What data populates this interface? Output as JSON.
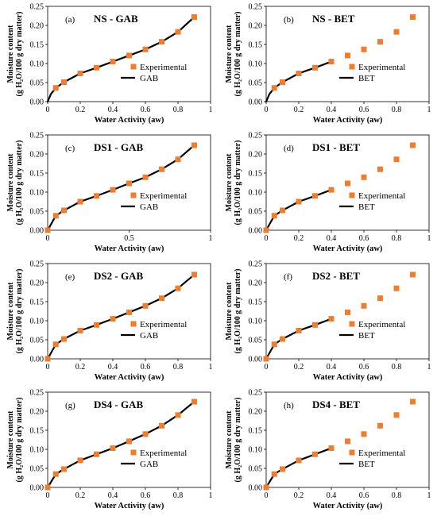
{
  "colors": {
    "marker": "#ed7d31",
    "model": "#000000",
    "axis": "#000000"
  },
  "chart_data": [
    {
      "type": "scatter",
      "panel_label": "(a)",
      "title": "NS - GAB",
      "xlabel": "Water Activity (aw)",
      "ylabel_line1": "Moisture content",
      "ylabel_line2": "(g H₂O/100 g dry matter)",
      "xlim": [
        0,
        1
      ],
      "ylim": [
        0,
        0.25
      ],
      "xticks": [
        "0",
        "0.2",
        "0.4",
        "0.6",
        "0.8",
        "1"
      ],
      "yticks": [
        "0.00",
        "0.05",
        "0.10",
        "0.15",
        "0.20",
        "0.25"
      ],
      "legend": [
        "Experimental",
        "GAB"
      ],
      "legend_position": "right",
      "experimental": {
        "x": [
          0.05,
          0.1,
          0.2,
          0.3,
          0.4,
          0.5,
          0.6,
          0.7,
          0.8,
          0.9
        ],
        "y": [
          0.036,
          0.051,
          0.074,
          0.089,
          0.105,
          0.121,
          0.137,
          0.157,
          0.183,
          0.222
        ]
      },
      "model": {
        "x": [
          0,
          0.02,
          0.05,
          0.1,
          0.2,
          0.3,
          0.4,
          0.5,
          0.6,
          0.7,
          0.8,
          0.9
        ],
        "y": [
          0,
          0.02,
          0.036,
          0.051,
          0.074,
          0.089,
          0.105,
          0.121,
          0.137,
          0.157,
          0.183,
          0.222
        ]
      }
    },
    {
      "type": "scatter",
      "panel_label": "(b)",
      "title": "NS - BET",
      "xlabel": "Water Activity (aw)",
      "ylabel_line1": "Moisture content",
      "ylabel_line2": "(g H₂O/100 g dry matter)",
      "xlim": [
        0,
        1
      ],
      "ylim": [
        0,
        0.25
      ],
      "xticks": [
        "0",
        "0.2",
        "0.4",
        "0.6",
        "0.8",
        "1"
      ],
      "yticks": [
        "0.00",
        "0.05",
        "0.10",
        "0.15",
        "0.20",
        "0.25"
      ],
      "legend": [
        "Experimental",
        "BET"
      ],
      "legend_position": "right",
      "experimental": {
        "x": [
          0.05,
          0.1,
          0.2,
          0.3,
          0.4,
          0.5,
          0.6,
          0.7,
          0.8,
          0.9
        ],
        "y": [
          0.036,
          0.051,
          0.074,
          0.089,
          0.105,
          0.121,
          0.137,
          0.157,
          0.183,
          0.222
        ]
      },
      "model": {
        "x": [
          0,
          0.02,
          0.05,
          0.1,
          0.2,
          0.3,
          0.4
        ],
        "y": [
          0,
          0.02,
          0.036,
          0.051,
          0.074,
          0.089,
          0.105
        ]
      }
    },
    {
      "type": "scatter",
      "panel_label": "(c)",
      "title": "DS1 - GAB",
      "xlabel": "Water Activity (aw)",
      "ylabel_line1": "Moisture content",
      "ylabel_line2": "(g H₂O/100 g dry matter)",
      "xlim": [
        0,
        1
      ],
      "ylim": [
        0,
        0.25
      ],
      "xticks": [
        "0",
        "0.5",
        "1"
      ],
      "xtick_values": [
        0,
        0.5,
        1
      ],
      "yticks": [
        "0.00",
        "0.05",
        "0.10",
        "0.15",
        "0.20",
        "0.25"
      ],
      "legend": [
        "Experimental",
        "GAB"
      ],
      "legend_position": "right",
      "experimental": {
        "x": [
          0.0,
          0.05,
          0.1,
          0.2,
          0.3,
          0.4,
          0.5,
          0.6,
          0.7,
          0.8,
          0.9
        ],
        "y": [
          0.0,
          0.038,
          0.052,
          0.075,
          0.09,
          0.106,
          0.123,
          0.139,
          0.16,
          0.186,
          0.223
        ]
      },
      "model": {
        "x": [
          0.0,
          0.05,
          0.1,
          0.2,
          0.3,
          0.4,
          0.5,
          0.6,
          0.7,
          0.8,
          0.9
        ],
        "y": [
          0.0,
          0.038,
          0.052,
          0.075,
          0.09,
          0.106,
          0.123,
          0.139,
          0.16,
          0.186,
          0.223
        ]
      }
    },
    {
      "type": "scatter",
      "panel_label": "(d)",
      "title": "DS1 - BET",
      "xlabel": "Water Activity (aw)",
      "ylabel_line1": "Moisture content",
      "ylabel_line2": "(g H₂O/100 g dry matter)",
      "xlim": [
        0,
        1
      ],
      "ylim": [
        0,
        0.25
      ],
      "xticks": [
        "0",
        "0.2",
        "0.4",
        "0.6",
        "0.8",
        "1"
      ],
      "yticks": [
        "0.00",
        "0.05",
        "0.10",
        "0.15",
        "0.20",
        "0.25"
      ],
      "legend": [
        "Experimental",
        "BET"
      ],
      "legend_position": "right",
      "experimental": {
        "x": [
          0.0,
          0.05,
          0.1,
          0.2,
          0.3,
          0.4,
          0.5,
          0.6,
          0.7,
          0.8,
          0.9
        ],
        "y": [
          0.0,
          0.038,
          0.052,
          0.075,
          0.09,
          0.106,
          0.123,
          0.139,
          0.16,
          0.186,
          0.223
        ]
      },
      "model": {
        "x": [
          0.0,
          0.05,
          0.1,
          0.2,
          0.3,
          0.4
        ],
        "y": [
          0.0,
          0.038,
          0.052,
          0.075,
          0.09,
          0.106
        ]
      }
    },
    {
      "type": "scatter",
      "panel_label": "(e)",
      "title": "DS2 - GAB",
      "xlabel": "Water Activity (aw)",
      "ylabel_line1": "Moisture content",
      "ylabel_line2": "(g H₂O/100 g dry matter)",
      "xlim": [
        0,
        1
      ],
      "ylim": [
        0,
        0.25
      ],
      "xticks": [
        "0",
        "0.2",
        "0.4",
        "0.6",
        "0.8",
        "1"
      ],
      "yticks": [
        "0.00",
        "0.05",
        "0.10",
        "0.15",
        "0.20",
        "0.25"
      ],
      "legend": [
        "Experimental",
        "GAB"
      ],
      "legend_position": "right",
      "experimental": {
        "x": [
          0.0,
          0.05,
          0.1,
          0.2,
          0.3,
          0.4,
          0.5,
          0.6,
          0.7,
          0.8,
          0.9
        ],
        "y": [
          0.0,
          0.038,
          0.052,
          0.074,
          0.089,
          0.105,
          0.122,
          0.139,
          0.159,
          0.185,
          0.221
        ]
      },
      "model": {
        "x": [
          0.0,
          0.05,
          0.1,
          0.2,
          0.3,
          0.4,
          0.5,
          0.6,
          0.7,
          0.8,
          0.9
        ],
        "y": [
          0.0,
          0.038,
          0.052,
          0.074,
          0.089,
          0.105,
          0.122,
          0.139,
          0.159,
          0.185,
          0.221
        ]
      }
    },
    {
      "type": "scatter",
      "panel_label": "(f)",
      "title": "DS2 - BET",
      "xlabel": "Water Activity (aw)",
      "ylabel_line1": "Moisture content",
      "ylabel_line2": "(g H₂O/100 g dry matter)",
      "xlim": [
        0,
        1
      ],
      "ylim": [
        0,
        0.25
      ],
      "xticks": [
        "0",
        "0.2",
        "0.4",
        "0.6",
        "0.8",
        "1"
      ],
      "yticks": [
        "0.00",
        "0.05",
        "0.10",
        "0.15",
        "0.20",
        "0.25"
      ],
      "legend": [
        "Experimental",
        "BET"
      ],
      "legend_position": "right",
      "experimental": {
        "x": [
          0.0,
          0.05,
          0.1,
          0.2,
          0.3,
          0.4,
          0.5,
          0.6,
          0.7,
          0.8,
          0.9
        ],
        "y": [
          0.0,
          0.038,
          0.052,
          0.074,
          0.089,
          0.105,
          0.122,
          0.139,
          0.159,
          0.185,
          0.221
        ]
      },
      "model": {
        "x": [
          0.0,
          0.05,
          0.1,
          0.2,
          0.3,
          0.4
        ],
        "y": [
          0.0,
          0.038,
          0.052,
          0.074,
          0.089,
          0.105
        ]
      }
    },
    {
      "type": "scatter",
      "panel_label": "(g)",
      "title": "DS4 - GAB",
      "xlabel": "Water Activity (aw)",
      "ylabel_line1": "Moisture content",
      "ylabel_line2": "(g H₂O/100 g dry matter)",
      "xlim": [
        0,
        1
      ],
      "ylim": [
        0,
        0.25
      ],
      "xticks": [
        "0",
        "0.2",
        "0.4",
        "0.6",
        "0.8",
        "1"
      ],
      "yticks": [
        "0.00",
        "0.05",
        "0.10",
        "0.15",
        "0.20",
        "0.25"
      ],
      "legend": [
        "Experimental",
        "GAB"
      ],
      "legend_position": "right",
      "experimental": {
        "x": [
          0.0,
          0.05,
          0.1,
          0.2,
          0.3,
          0.4,
          0.5,
          0.6,
          0.7,
          0.8,
          0.9
        ],
        "y": [
          0.0,
          0.035,
          0.048,
          0.071,
          0.087,
          0.103,
          0.121,
          0.14,
          0.162,
          0.19,
          0.225
        ]
      },
      "model": {
        "x": [
          0.0,
          0.05,
          0.1,
          0.2,
          0.3,
          0.4,
          0.5,
          0.6,
          0.7,
          0.8,
          0.9
        ],
        "y": [
          0.0,
          0.035,
          0.048,
          0.071,
          0.087,
          0.103,
          0.121,
          0.14,
          0.162,
          0.19,
          0.225
        ]
      }
    },
    {
      "type": "scatter",
      "panel_label": "(h)",
      "title": "DS4 - BET",
      "xlabel": "Water Activity (aw)",
      "ylabel_line1": "Moisture content",
      "ylabel_line2": "(g H₂O/100 g dry matter)",
      "xlim": [
        0,
        1
      ],
      "ylim": [
        0,
        0.25
      ],
      "xticks": [
        "0",
        "0.2",
        "0.4",
        "0.6",
        "0.8",
        "1"
      ],
      "yticks": [
        "0.00",
        "0.05",
        "0.10",
        "0.15",
        "0.20",
        "0.25"
      ],
      "legend": [
        "Experimental",
        "BET"
      ],
      "legend_position": "right",
      "experimental": {
        "x": [
          0.0,
          0.05,
          0.1,
          0.2,
          0.3,
          0.4,
          0.5,
          0.6,
          0.7,
          0.8,
          0.9
        ],
        "y": [
          0.0,
          0.035,
          0.048,
          0.071,
          0.087,
          0.103,
          0.121,
          0.14,
          0.162,
          0.19,
          0.225
        ]
      },
      "model": {
        "x": [
          0.0,
          0.05,
          0.1,
          0.2,
          0.3,
          0.4
        ],
        "y": [
          0.0,
          0.035,
          0.048,
          0.071,
          0.087,
          0.103
        ]
      }
    }
  ]
}
